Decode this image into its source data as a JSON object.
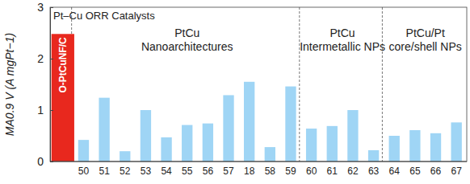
{
  "chart_data": {
    "type": "bar",
    "y_label": "MA0.9 V (A mgPt−1)",
    "categories": [
      null,
      "50",
      "51",
      "52",
      "53",
      "54",
      "55",
      "56",
      "57",
      "18",
      "58",
      "59",
      "60",
      "61",
      "62",
      "63",
      "64",
      "65",
      "66",
      "67"
    ],
    "values": [
      2.48,
      0.42,
      1.24,
      0.2,
      1.0,
      0.47,
      0.71,
      0.74,
      1.29,
      1.55,
      0.28,
      1.46,
      0.64,
      0.69,
      1.0,
      0.22,
      0.5,
      0.61,
      0.55,
      0.76
    ],
    "colors": [
      "#e8281e",
      "#9fd5f5",
      "#9fd5f5",
      "#9fd5f5",
      "#9fd5f5",
      "#9fd5f5",
      "#9fd5f5",
      "#9fd5f5",
      "#9fd5f5",
      "#9fd5f5",
      "#9fd5f5",
      "#9fd5f5",
      "#9fd5f5",
      "#9fd5f5",
      "#9fd5f5",
      "#9fd5f5",
      "#9fd5f5",
      "#9fd5f5",
      "#9fd5f5",
      "#9fd5f5"
    ],
    "ylim": [
      0,
      3
    ],
    "yticks": [
      0,
      1,
      2,
      3
    ],
    "grid": false,
    "annotations": [
      [
        "Pt–Cu ORR Catalysts"
      ],
      [
        "O-PtCuNF/C"
      ],
      [
        "PtCu",
        "Nanoarchitectures"
      ],
      [
        "PtCu",
        "Intermetallic NPs"
      ],
      [
        "PtCu/Pt",
        "core/shell NPs"
      ]
    ]
  }
}
